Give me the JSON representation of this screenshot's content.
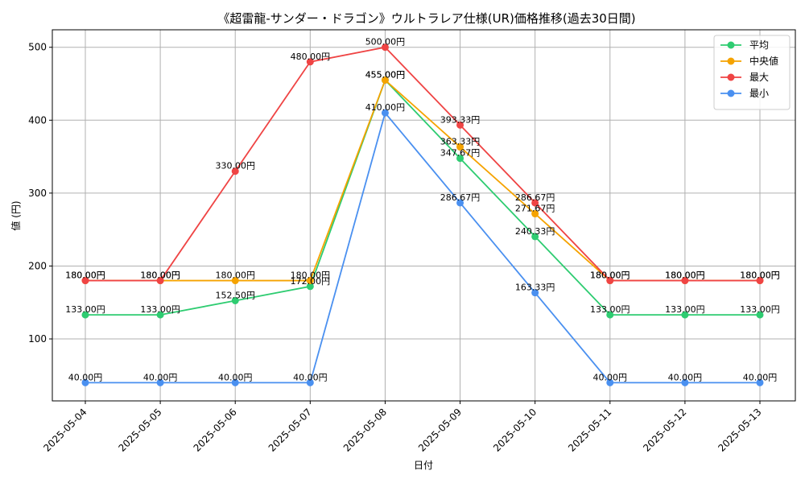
{
  "chart_data": {
    "type": "line",
    "title": "《超雷龍-サンダー・ドラゴン》ウルトラレア仕様(UR)価格推移(過去30日間)",
    "xlabel": "日付",
    "ylabel": "値 (円)",
    "categories": [
      "2025-05-04",
      "2025-05-05",
      "2025-05-06",
      "2025-05-07",
      "2025-05-08",
      "2025-05-09",
      "2025-05-10",
      "2025-05-11",
      "2025-05-12",
      "2025-05-13"
    ],
    "ylim": [
      15,
      524
    ],
    "yticks": [
      100,
      200,
      300,
      400,
      500
    ],
    "grid": true,
    "legend_position": "top-right",
    "series": [
      {
        "name": "平均",
        "color": "#2ecc71",
        "values": [
          133.0,
          133.0,
          152.5,
          172.0,
          455.0,
          347.67,
          240.33,
          133.0,
          133.0,
          133.0
        ],
        "labels": [
          "133.00円",
          "133.00円",
          "152.50円",
          "172.00円",
          "455.00円",
          "347.67円",
          "240.33円",
          "133.00円",
          "133.00円",
          "133.00円"
        ]
      },
      {
        "name": "中央値",
        "color": "#f5a300",
        "values": [
          180.0,
          180.0,
          180.0,
          180.0,
          455.0,
          363.33,
          271.67,
          180.0,
          180.0,
          180.0
        ],
        "labels": [
          "180.00円",
          "180.00円",
          "180.00円",
          "180.00円",
          "455.00円",
          "363.33円",
          "271.67円",
          "180.00円",
          "180.00円",
          "180.00円"
        ]
      },
      {
        "name": "最大",
        "color": "#ef4444",
        "values": [
          180.0,
          180.0,
          330.0,
          480.0,
          500.0,
          393.33,
          286.67,
          180.0,
          180.0,
          180.0
        ],
        "labels": [
          "180.00円",
          "180.00円",
          "330.00円",
          "480.00円",
          "500.00円",
          "393.33円",
          "286.67円",
          "180.00円",
          "180.00円",
          "180.00円"
        ]
      },
      {
        "name": "最小",
        "color": "#4a90f0",
        "values": [
          40.0,
          40.0,
          40.0,
          40.0,
          410.0,
          286.67,
          163.33,
          40.0,
          40.0,
          40.0
        ],
        "labels": [
          "40.00円",
          "40.00円",
          "40.00円",
          "40.00円",
          "410.00円",
          "286.67円",
          "163.33円",
          "40.00円",
          "40.00円",
          "40.00円"
        ]
      }
    ]
  }
}
